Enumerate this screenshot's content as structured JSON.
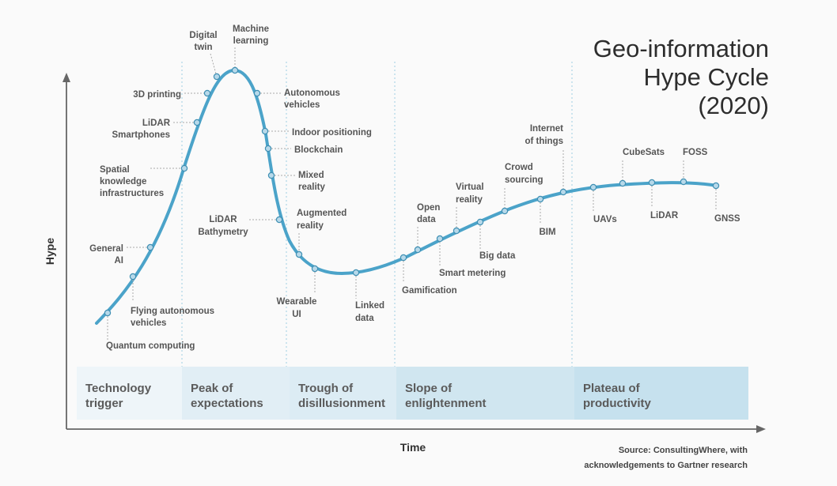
{
  "title": [
    "Geo-information",
    "Hype Cycle",
    "(2020)"
  ],
  "axes": {
    "x_label": "Time",
    "y_label": "Hype"
  },
  "source": [
    "Source: ConsultingWhere, with",
    "acknowledgements to Gartner research"
  ],
  "phases": [
    {
      "label": [
        "Technology",
        "trigger"
      ],
      "color": "#eef5f9"
    },
    {
      "label": [
        "Peak of",
        "expectations"
      ],
      "color": "#e1eef5"
    },
    {
      "label": [
        "Trough of",
        "disillusionment"
      ],
      "color": "#dcecf4"
    },
    {
      "label": [
        "Slope of",
        "enlightenment"
      ],
      "color": "#d0e6f0"
    },
    {
      "label": [
        "Plateau of",
        "productivity"
      ],
      "color": "#c6e1ee"
    }
  ],
  "colors": {
    "curve": "#4ba3c9",
    "marker_fill": "#b7d9ea",
    "axis": "#666666",
    "connector": "#aaaaaa"
  },
  "technologies": [
    "Quantum computing",
    "Flying autonomous vehicles",
    "General AI",
    "Spatial knowledge infrastructures",
    "LiDAR Smartphones",
    "3D printing",
    "Digital twin",
    "Machine learning",
    "Autonomous vehicles",
    "Indoor positioning",
    "Blockchain",
    "Mixed reality",
    "LiDAR Bathymetry",
    "Augmented reality",
    "Wearable UI",
    "Linked data",
    "Gamification",
    "Open data",
    "Smart metering",
    "Virtual reality",
    "Big data",
    "Crowd sourcing",
    "BIM",
    "Internet of things",
    "UAVs",
    "CubeSats",
    "LiDAR",
    "FOSS",
    "GNSS"
  ]
}
